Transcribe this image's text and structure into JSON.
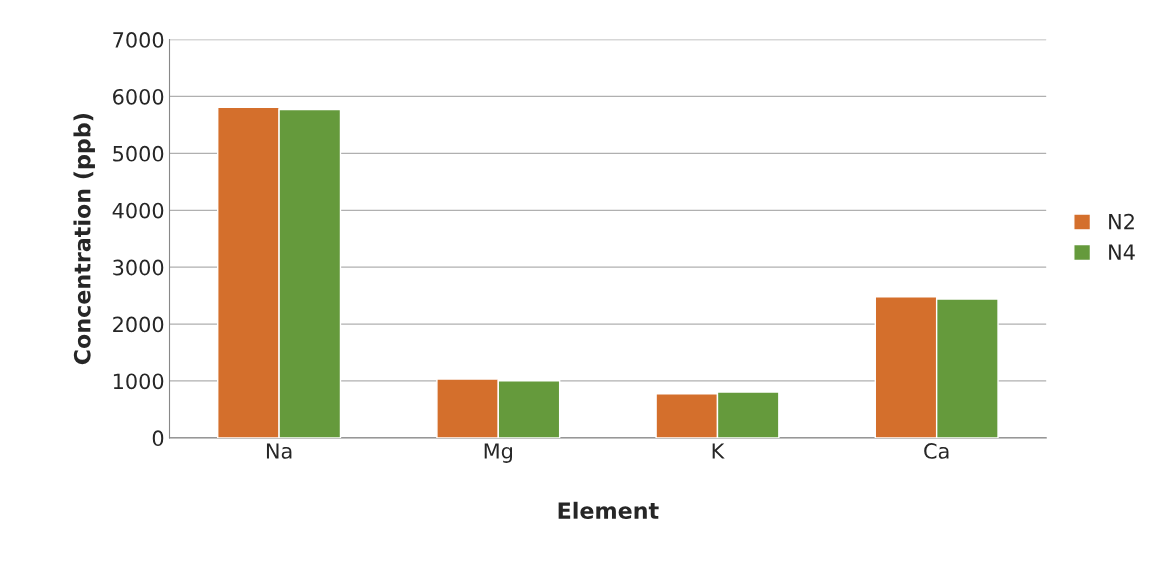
{
  "chart_data": {
    "type": "bar",
    "xlabel": "Element",
    "ylabel": "Concentration (ppb)",
    "categories": [
      "Na",
      "Mg",
      "K",
      "Ca"
    ],
    "series": [
      {
        "name": "N2",
        "color": "#d46f2c",
        "values": [
          5810,
          1035,
          775,
          2480
        ]
      },
      {
        "name": "N4",
        "color": "#659a3c",
        "values": [
          5770,
          1005,
          805,
          2440
        ]
      }
    ],
    "ylim": [
      0,
      7000
    ],
    "yticks": [
      0,
      1000,
      2000,
      3000,
      4000,
      5000,
      6000,
      7000
    ],
    "grid": "y",
    "legend": "right"
  }
}
